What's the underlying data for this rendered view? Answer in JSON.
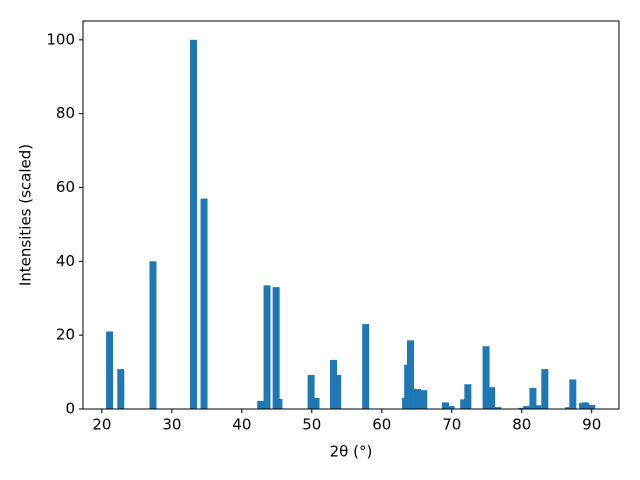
{
  "chart_data": {
    "type": "bar",
    "x_label": "2θ (°)",
    "y_label": "Intensities (scaled)",
    "x": [
      21.1,
      22.7,
      27.3,
      33.1,
      34.6,
      42.7,
      43.6,
      44.9,
      45.3,
      49.9,
      50.6,
      53.1,
      53.7,
      57.7,
      63.4,
      63.7,
      64.1,
      65.1,
      66.0,
      69.1,
      69.9,
      71.7,
      72.3,
      74.9,
      75.7,
      76.6,
      80.0,
      80.7,
      81.6,
      82.3,
      83.3,
      86.7,
      87.3,
      88.7,
      89.1,
      90.0
    ],
    "values": [
      21,
      10.8,
      40,
      100,
      57,
      2.2,
      33.5,
      33,
      2.7,
      9.2,
      3,
      13.3,
      9.2,
      23,
      3,
      12,
      18.6,
      5.4,
      5.1,
      1.8,
      0.8,
      2.6,
      6.7,
      17,
      5.9,
      0.5,
      0.3,
      0.8,
      5.7,
      1,
      10.8,
      0.5,
      8,
      1.6,
      1.8,
      1.1
    ],
    "color": "#1f77b4",
    "xlim": [
      17.3,
      93.9
    ],
    "xticks": [
      20,
      30,
      40,
      50,
      60,
      70,
      80,
      90
    ],
    "ylim": [
      0,
      105.1
    ],
    "yticks": [
      0,
      20,
      40,
      60,
      80,
      100
    ],
    "grid": false
  }
}
